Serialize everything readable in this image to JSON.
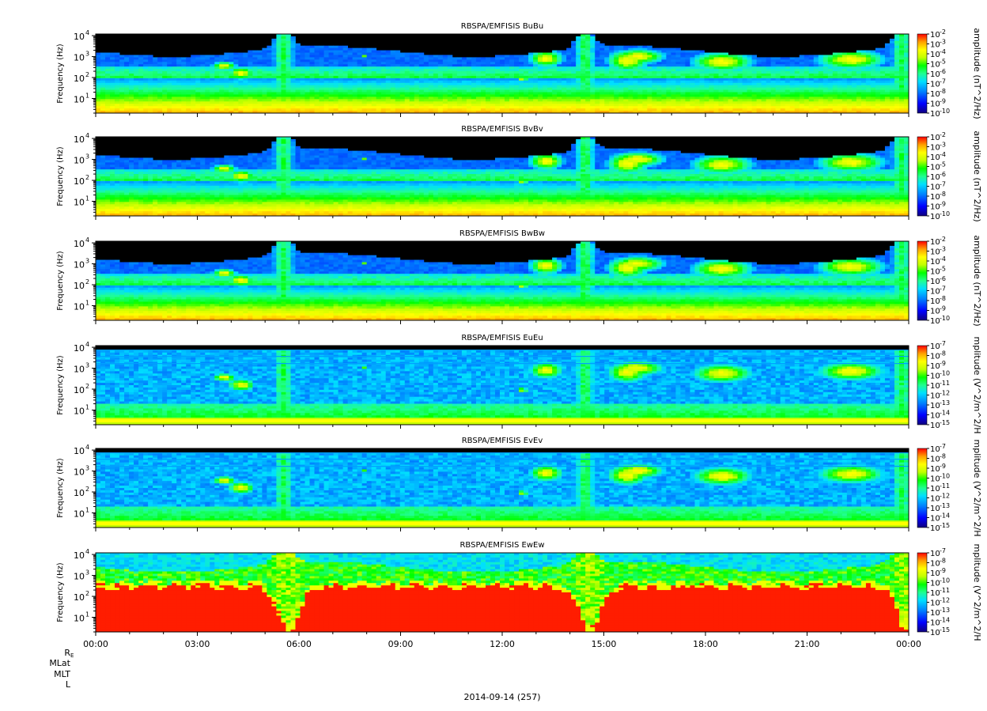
{
  "chart_data": {
    "type": "heatmap",
    "x_axis": {
      "tick_labels": [
        "00:00",
        "03:00",
        "06:00",
        "09:00",
        "12:00",
        "15:00",
        "18:00",
        "21:00",
        "00:00"
      ],
      "range_hours": [
        0,
        24
      ],
      "date_label": "2014-09-14 (257)"
    },
    "ephemeris_labels": [
      "R",
      "MLat",
      "MLT",
      "L"
    ],
    "ephemeris_subscript": "E",
    "panels": [
      {
        "id": "bubu",
        "title": "RBSPA/EMFISIS  BuBu",
        "ylabel": "Frequency (Hz)",
        "y_scale": "log",
        "y_range_hz": [
          2,
          12000
        ],
        "y_tick_labels": [
          "10",
          "10",
          "10",
          "10"
        ],
        "y_tick_exponents": [
          "1",
          "2",
          "3",
          "4"
        ],
        "colorbar_label": "amplitude (nT^2/Hz)",
        "colorbar_tick_exponents": [
          "-2",
          "-3",
          "-4",
          "-5",
          "-6",
          "-7",
          "-8",
          "-9",
          "-10"
        ],
        "colorbar_range_log10": [
          -10,
          -2
        ],
        "kind": "B",
        "background_level": 0.55,
        "overlay": "none"
      },
      {
        "id": "bvbv",
        "title": "RBSPA/EMFISIS  BvBv",
        "ylabel": "Frequency (Hz)",
        "y_scale": "log",
        "y_range_hz": [
          2,
          12000
        ],
        "y_tick_labels": [
          "10",
          "10",
          "10",
          "10"
        ],
        "y_tick_exponents": [
          "1",
          "2",
          "3",
          "4"
        ],
        "colorbar_label": "amplitude (nT^2/Hz)",
        "colorbar_tick_exponents": [
          "-2",
          "-3",
          "-4",
          "-5",
          "-6",
          "-7",
          "-8",
          "-9",
          "-10"
        ],
        "colorbar_range_log10": [
          -10,
          -2
        ],
        "kind": "B",
        "background_level": 0.55,
        "overlay": "none"
      },
      {
        "id": "bwbw",
        "title": "RBSPA/EMFISIS  BwBw",
        "ylabel": "Frequency (Hz)",
        "y_scale": "log",
        "y_range_hz": [
          2,
          12000
        ],
        "y_tick_labels": [
          "10",
          "10",
          "10",
          "10"
        ],
        "y_tick_exponents": [
          "1",
          "2",
          "3",
          "4"
        ],
        "colorbar_label": "amplitude (nT^2/Hz)",
        "colorbar_tick_exponents": [
          "-2",
          "-3",
          "-4",
          "-5",
          "-6",
          "-7",
          "-8",
          "-9",
          "-10"
        ],
        "colorbar_range_log10": [
          -10,
          -2
        ],
        "kind": "B",
        "background_level": 0.45,
        "overlay": "none"
      },
      {
        "id": "eueu",
        "title": "RBSPA/EMFISIS  EuEu",
        "ylabel": "Frequency (Hz)",
        "y_scale": "log",
        "y_range_hz": [
          2,
          12000
        ],
        "y_tick_labels": [
          "10",
          "10",
          "10",
          "10"
        ],
        "y_tick_exponents": [
          "1",
          "2",
          "3",
          "4"
        ],
        "colorbar_label": "mplitude (V^2/m^2/H",
        "colorbar_tick_exponents": [
          "-7",
          "-8",
          "-9",
          "-10",
          "-11",
          "-12",
          "-13",
          "-14",
          "-15"
        ],
        "colorbar_range_log10": [
          -15,
          -7
        ],
        "kind": "E",
        "background_level": 0.2,
        "overlay": "lines"
      },
      {
        "id": "evev",
        "title": "RBSPA/EMFISIS  EvEv",
        "ylabel": "Frequency (Hz)",
        "y_scale": "log",
        "y_range_hz": [
          2,
          12000
        ],
        "y_tick_labels": [
          "10",
          "10",
          "10",
          "10"
        ],
        "y_tick_exponents": [
          "1",
          "2",
          "3",
          "4"
        ],
        "colorbar_label": "mplitude (V^2/m^2/H",
        "colorbar_tick_exponents": [
          "-7",
          "-8",
          "-9",
          "-10",
          "-11",
          "-12",
          "-13",
          "-14",
          "-15"
        ],
        "colorbar_range_log10": [
          -15,
          -7
        ],
        "kind": "E",
        "background_level": 0.2,
        "overlay": "lines"
      },
      {
        "id": "ewew",
        "title": "RBSPA/EMFISIS  EwEw",
        "ylabel": "Frequency (Hz)",
        "y_scale": "log",
        "y_range_hz": [
          2,
          12000
        ],
        "y_tick_labels": [
          "10",
          "10",
          "10",
          "10"
        ],
        "y_tick_exponents": [
          "1",
          "2",
          "3",
          "4"
        ],
        "colorbar_label": "mplitude (V^2/m^2/H",
        "colorbar_tick_exponents": [
          "-7",
          "-8",
          "-9",
          "-10",
          "-11",
          "-12",
          "-13",
          "-14",
          "-15"
        ],
        "colorbar_range_log10": [
          -15,
          -7
        ],
        "kind": "Ew",
        "background_level": 0.35,
        "overlay": "red"
      }
    ],
    "colormap": [
      "#10007e",
      "#0000ff",
      "#0080ff",
      "#00dfff",
      "#20ff90",
      "#00ff00",
      "#c0ff00",
      "#ffff00",
      "#ffa000",
      "#ff0000"
    ]
  }
}
